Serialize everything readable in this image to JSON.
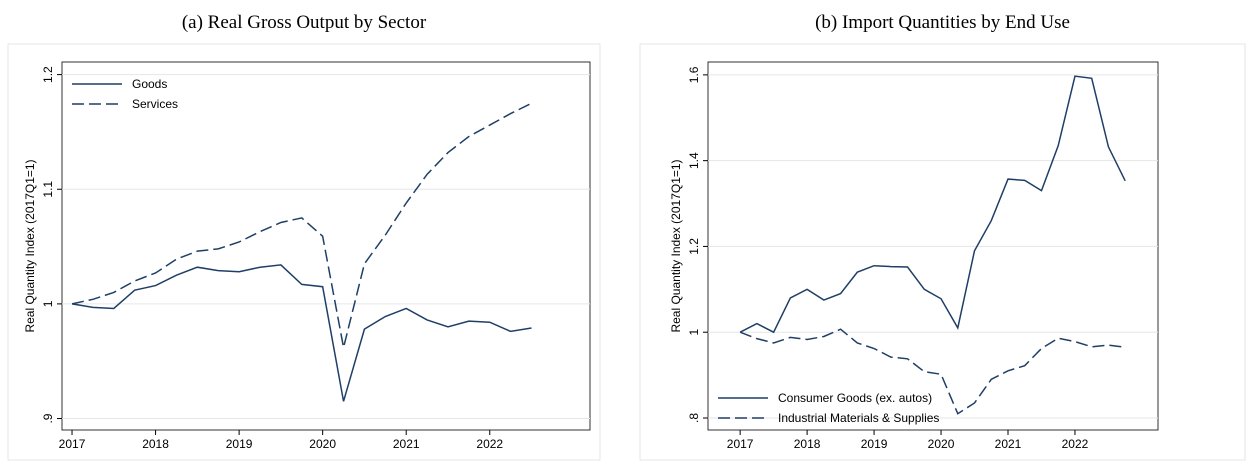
{
  "chart_data": [
    {
      "type": "line",
      "title": "(a) Real Gross Output by Sector",
      "y_label": "Real Quantity Index (2017Q1=1)",
      "x": [
        2017,
        2017.25,
        2017.5,
        2017.75,
        2018,
        2018.25,
        2018.5,
        2018.75,
        2019,
        2019.25,
        2019.5,
        2019.75,
        2020,
        2020.25,
        2020.5,
        2020.75,
        2021,
        2021.25,
        2021.5,
        2021.75,
        2022,
        2022.25,
        2022.5
      ],
      "series": [
        {
          "name": "Goods",
          "color": "#1f3f66",
          "style": "solid",
          "values": [
            1.0,
            0.997,
            0.996,
            1.012,
            1.016,
            1.025,
            1.032,
            1.029,
            1.028,
            1.032,
            1.034,
            1.017,
            1.015,
            0.915,
            0.978,
            0.989,
            0.996,
            0.986,
            0.98,
            0.985,
            0.984,
            0.976,
            0.979
          ]
        },
        {
          "name": "Services",
          "color": "#1f3f66",
          "style": "dash",
          "values": [
            1.0,
            1.004,
            1.01,
            1.02,
            1.027,
            1.039,
            1.046,
            1.048,
            1.054,
            1.063,
            1.071,
            1.075,
            1.059,
            0.962,
            1.035,
            1.06,
            1.088,
            1.113,
            1.132,
            1.146,
            1.156,
            1.166,
            1.175
          ]
        }
      ],
      "xlim": [
        2016.88,
        2023.2
      ],
      "xticks": [
        2017,
        2018,
        2019,
        2020,
        2021,
        2022
      ],
      "ylim": [
        0.89,
        1.211
      ],
      "yticks": [
        {
          "value": 0.9,
          "label": ".9"
        },
        1,
        1.1,
        1.2
      ],
      "grid": true,
      "legend": "upper left"
    },
    {
      "type": "line",
      "title": "(b) Import Quantities by End Use",
      "y_label": "Real Quantity Index (2017Q1=1)",
      "x": [
        2017,
        2017.25,
        2017.5,
        2017.75,
        2018,
        2018.25,
        2018.5,
        2018.75,
        2019,
        2019.25,
        2019.5,
        2019.75,
        2020,
        2020.25,
        2020.5,
        2020.75,
        2021,
        2021.25,
        2021.5,
        2021.75,
        2022,
        2022.25,
        2022.5,
        2022.75
      ],
      "series": [
        {
          "name": "Consumer Goods (ex. autos)",
          "color": "#1f3f66",
          "style": "solid",
          "values": [
            1.0,
            1.02,
            1.0,
            1.08,
            1.1,
            1.075,
            1.09,
            1.14,
            1.155,
            1.153,
            1.152,
            1.1,
            1.078,
            1.01,
            1.19,
            1.26,
            1.357,
            1.354,
            1.33,
            1.435,
            1.597,
            1.592,
            1.432,
            1.353
          ]
        },
        {
          "name": "Industrial Materials & Supplies",
          "color": "#1f3f66",
          "style": "dash",
          "values": [
            1.0,
            0.985,
            0.975,
            0.988,
            0.983,
            0.99,
            1.007,
            0.975,
            0.962,
            0.942,
            0.938,
            0.908,
            0.902,
            0.81,
            0.835,
            0.89,
            0.91,
            0.922,
            0.962,
            0.986,
            0.978,
            0.966,
            0.97,
            0.965
          ]
        }
      ],
      "xlim": [
        2016.52,
        2023.24
      ],
      "xticks": [
        2017,
        2018,
        2019,
        2020,
        2021,
        2022
      ],
      "ylim": [
        0.772,
        1.63
      ],
      "yticks": [
        {
          "value": 0.8,
          "label": ".8"
        },
        1,
        1.2,
        1.4,
        1.6
      ],
      "grid": true,
      "legend": "lower left"
    }
  ]
}
